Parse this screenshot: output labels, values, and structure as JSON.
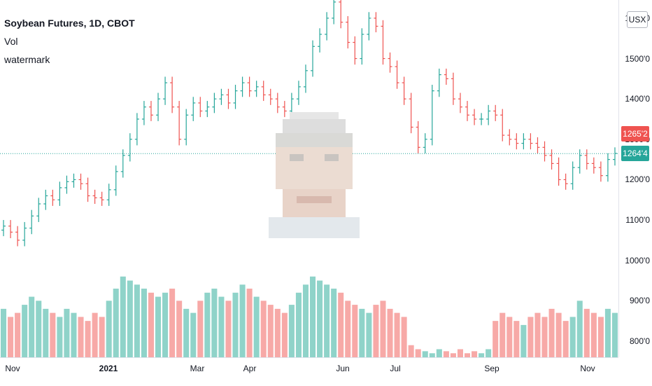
{
  "legend": {
    "title": "Soybean Futures, 1D, CBOT",
    "indicator": "Vol",
    "layer": "watermark"
  },
  "currency": "USX",
  "colors": {
    "up": "#26a69a",
    "down": "#ef5350",
    "upVol": "#8fd3c9",
    "downVol": "#f7a9a7"
  },
  "price_labels": {
    "last": "1265'2",
    "current": "1264'4"
  },
  "chart_data": {
    "type": "candlestick",
    "title": "Soybean Futures, 1D, CBOT",
    "y_ticks": [
      "1600'0",
      "1500'0",
      "1400'0",
      "1300'0",
      "1200'0",
      "1100'0",
      "1000'0",
      "900'0",
      "800'0"
    ],
    "y_tick_values": [
      1600,
      1500,
      1400,
      1300,
      1200,
      1100,
      1000,
      900,
      800
    ],
    "x_ticks": [
      "Nov",
      "2021",
      "Mar",
      "Apr",
      "Jun",
      "Jul",
      "Sep",
      "Nov"
    ],
    "ylim": [
      760,
      1645
    ],
    "last_price": 1265.25,
    "current_price": 1264.5,
    "series": [
      {
        "name": "Price",
        "values": [
          1085,
          1070,
          1050,
          1080,
          1110,
          1140,
          1160,
          1150,
          1180,
          1195,
          1200,
          1190,
          1160,
          1155,
          1150,
          1175,
          1220,
          1260,
          1300,
          1350,
          1380,
          1360,
          1400,
          1440,
          1380,
          1300,
          1360,
          1390,
          1370,
          1380,
          1400,
          1410,
          1390,
          1420,
          1440,
          1420,
          1430,
          1410,
          1400,
          1380,
          1370,
          1400,
          1430,
          1470,
          1530,
          1560,
          1600,
          1640,
          1590,
          1540,
          1500,
          1560,
          1600,
          1580,
          1500,
          1480,
          1440,
          1400,
          1330,
          1280,
          1300,
          1420,
          1460,
          1450,
          1400,
          1380,
          1360,
          1350,
          1350,
          1370,
          1360,
          1310,
          1300,
          1290,
          1300,
          1290,
          1280,
          1260,
          1240,
          1200,
          1190,
          1230,
          1260,
          1240,
          1230,
          1210,
          1250,
          1265
        ]
      },
      {
        "name": "Vol",
        "values": [
          880,
          860,
          870,
          890,
          910,
          900,
          880,
          870,
          860,
          880,
          870,
          860,
          850,
          870,
          860,
          900,
          930,
          960,
          950,
          940,
          930,
          920,
          910,
          920,
          930,
          900,
          880,
          870,
          900,
          920,
          930,
          910,
          900,
          920,
          940,
          930,
          910,
          900,
          890,
          880,
          870,
          890,
          920,
          940,
          960,
          950,
          940,
          930,
          920,
          900,
          890,
          880,
          870,
          890,
          900,
          880,
          870,
          860,
          790,
          780,
          775,
          770,
          780,
          775,
          770,
          780,
          770,
          775,
          770,
          780,
          850,
          870,
          860,
          850,
          840,
          860,
          870,
          860,
          880,
          870,
          850,
          860,
          900,
          880,
          870,
          860,
          880,
          870
        ]
      }
    ]
  }
}
